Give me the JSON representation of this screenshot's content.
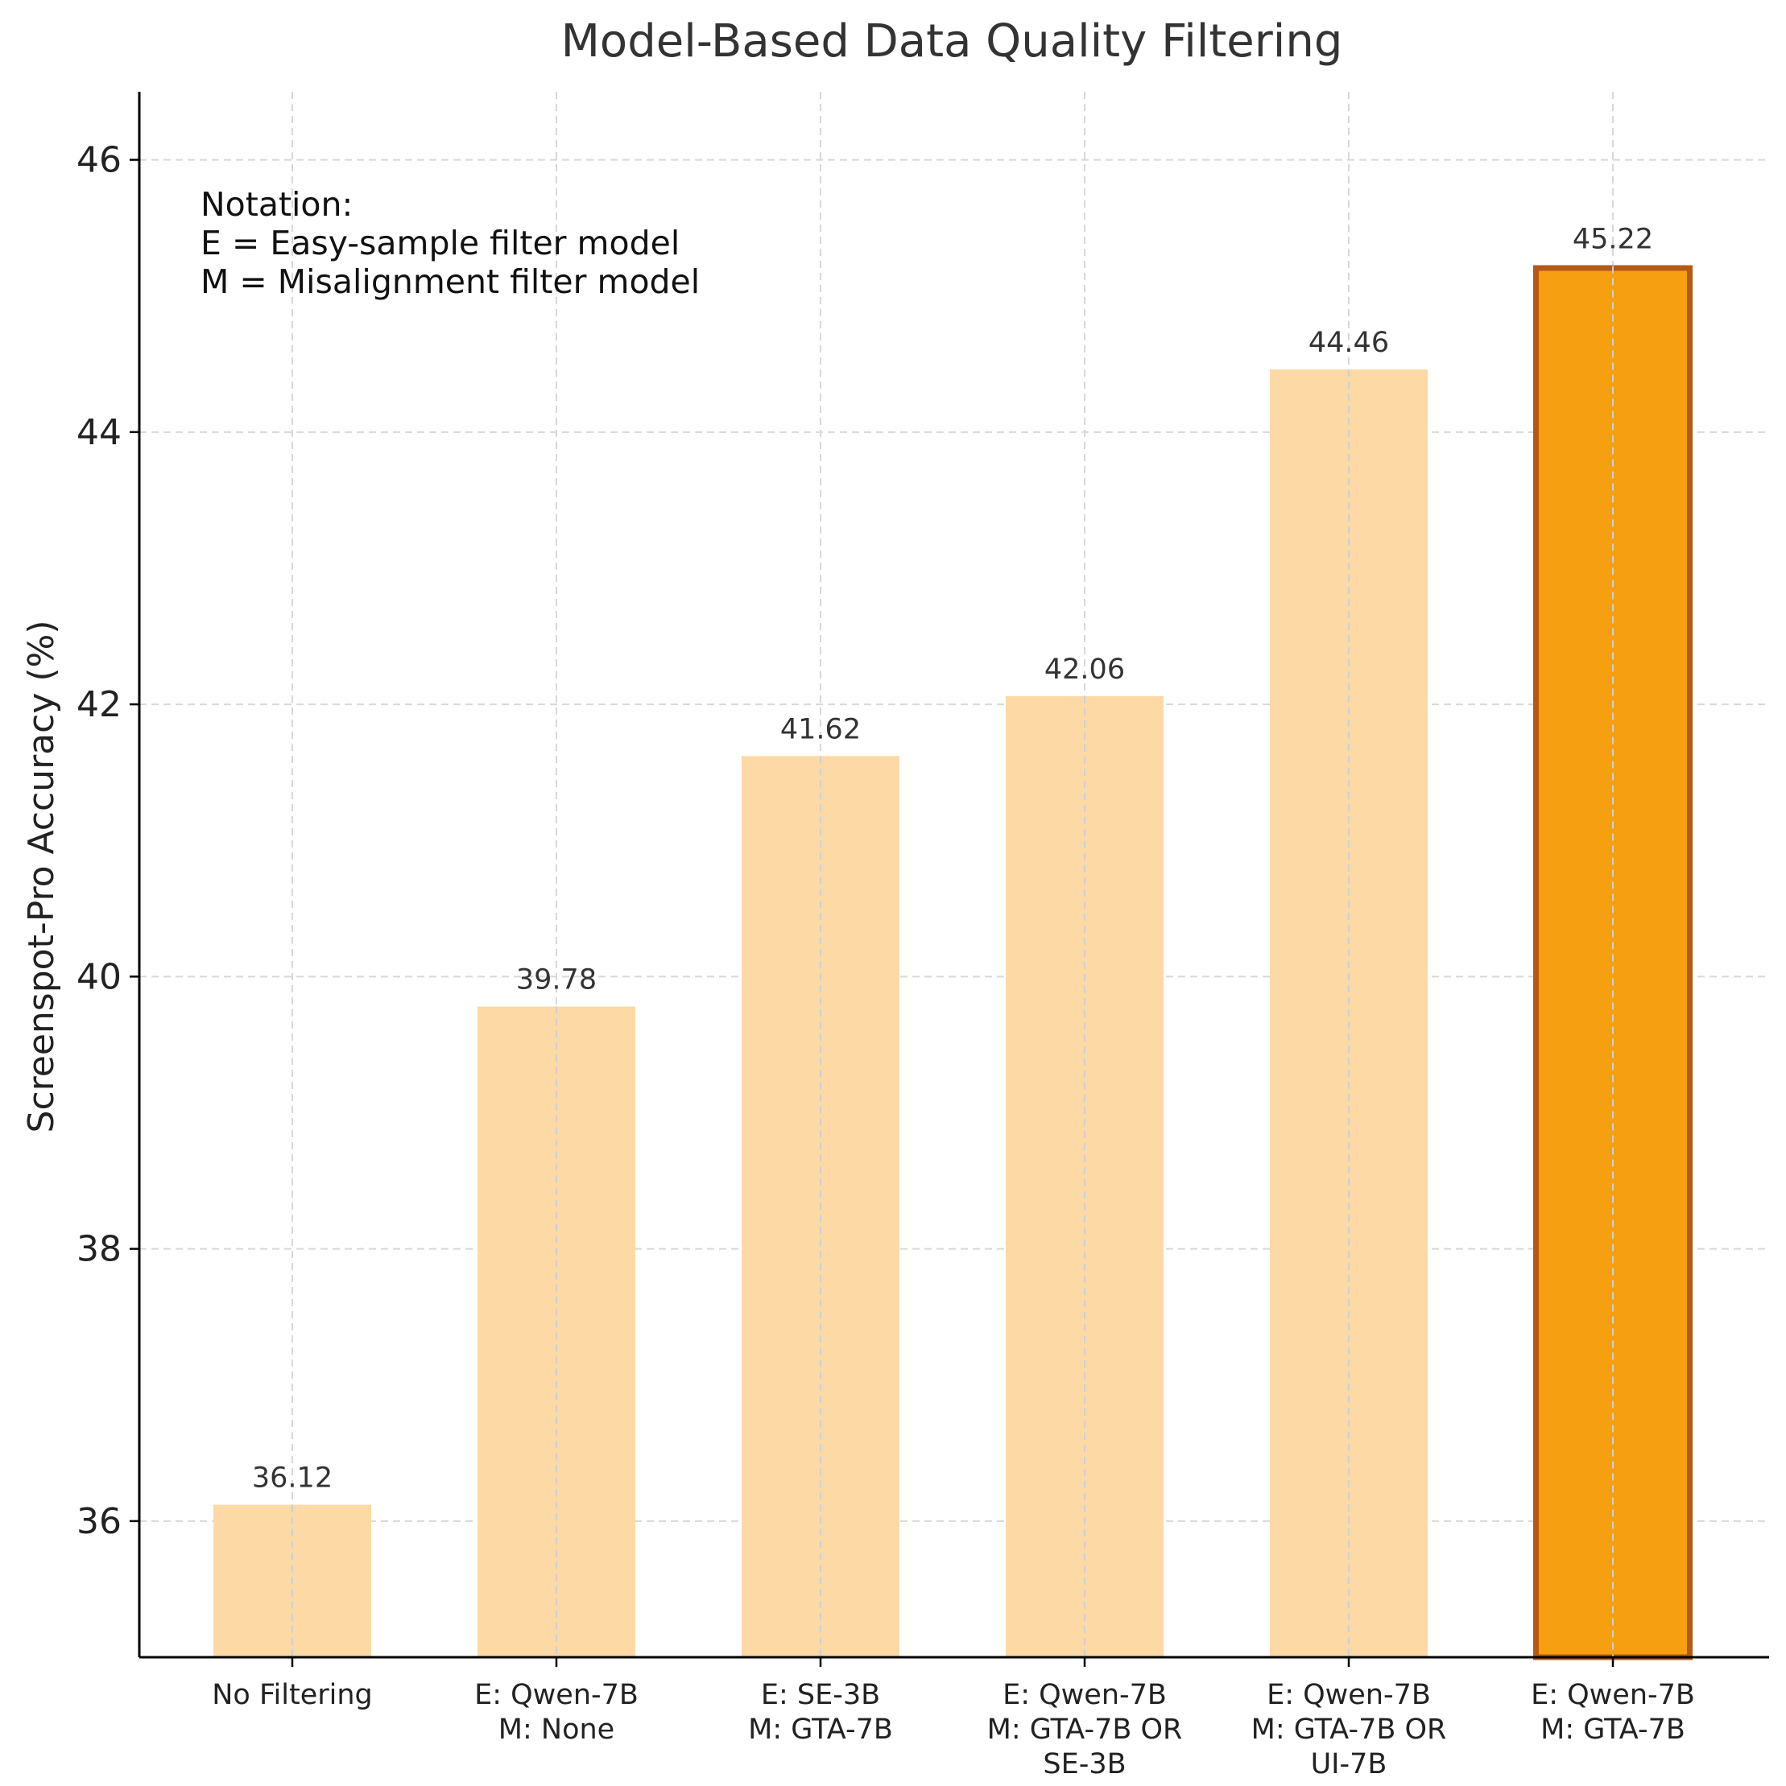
{
  "chart_data": {
    "type": "bar",
    "title": "Model-Based Data Quality Filtering",
    "xlabel": "",
    "ylabel": "Screenspot-Pro Accuracy (%)",
    "ylim": [
      35,
      46.5
    ],
    "yticks": [
      36,
      38,
      40,
      42,
      44,
      46
    ],
    "grid": true,
    "categories": [
      [
        "No Filtering"
      ],
      [
        "E: Qwen-7B",
        "M: None"
      ],
      [
        "E: SE-3B",
        "M: GTA-7B"
      ],
      [
        "E: Qwen-7B",
        "M: GTA-7B OR",
        "SE-3B"
      ],
      [
        "E: Qwen-7B",
        "M: GTA-7B OR",
        "UI-7B"
      ],
      [
        "E: Qwen-7B",
        "M: GTA-7B"
      ]
    ],
    "values": [
      36.12,
      39.78,
      41.62,
      42.06,
      44.46,
      45.22
    ],
    "value_labels": [
      "36.12",
      "39.78",
      "41.62",
      "42.06",
      "44.46",
      "45.22"
    ],
    "highlight_index": 5,
    "annotation": [
      "Notation:",
      "E = Easy-sample filter model",
      "M = Misalignment filter model"
    ],
    "colors": {
      "bar": "#fdd9a5",
      "highlight_bar": "#f59f11",
      "highlight_edge": "#b35a17",
      "text": "#333333",
      "axis": "#000000",
      "grid": "#d8d8d8"
    }
  }
}
